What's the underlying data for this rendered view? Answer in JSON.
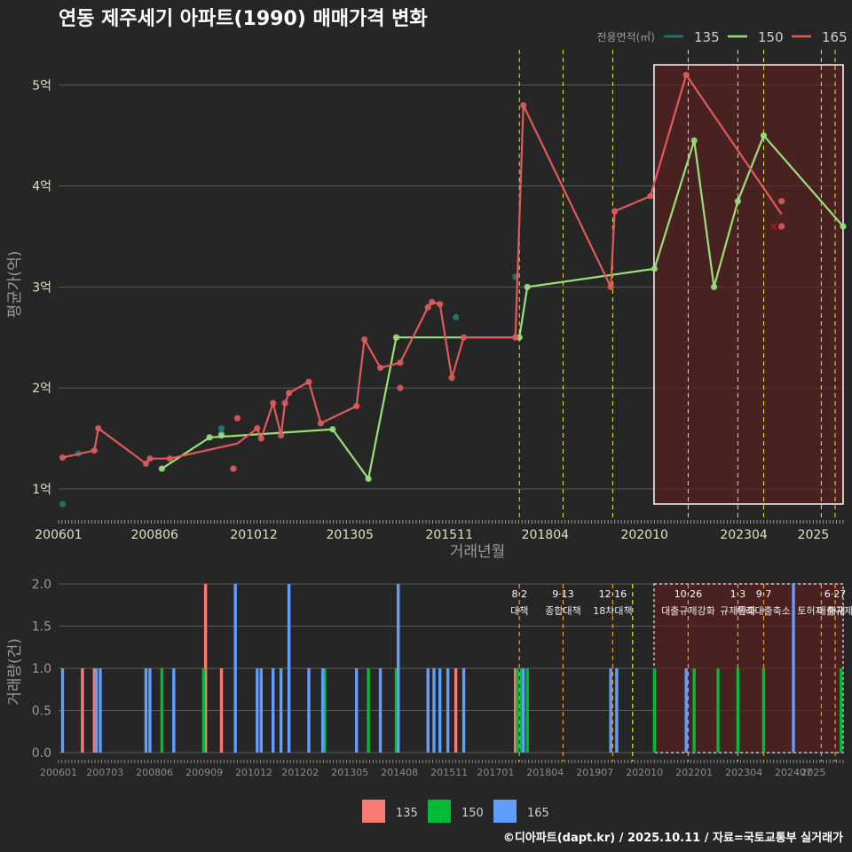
{
  "title": "연동 제주세기 아파트(1990) 매매가격 변화",
  "footer": "©디아파트(dapt.kr) / 2025.10.11 / 자료=국토교통부 실거래가",
  "colors": {
    "bg": "#262626",
    "grid": "#5a5a5a",
    "text": "#ffffff",
    "axis_text": "#e0e0c0",
    "s135_line": "#1e7b6f",
    "s150_line": "#98e07a",
    "s165_line": "#e05a5a",
    "s135_bar": "#f87a72",
    "s150_bar": "#00ba38",
    "s165_bar": "#619cff",
    "vline": "#e8e830",
    "vline_bar": "#f0a020",
    "box_fill": "#5a1f1f",
    "box_stroke": "#ffffff",
    "sale_mark": "#cc2020"
  },
  "chart_data": [
    {
      "type": "line",
      "title": "연동 제주세기 아파트(1990) 매매가격 변화",
      "xlabel": "거래년월",
      "ylabel": "평균가(억)",
      "xlim": [
        2006.0,
        2025.75
      ],
      "ylim": [
        0.7,
        5.35
      ],
      "x_ticks": [
        {
          "t": 2006.0,
          "label": "200601"
        },
        {
          "t": 2008.4167,
          "label": "200806"
        },
        {
          "t": 2010.9167,
          "label": "201012"
        },
        {
          "t": 2013.3333,
          "label": "201305"
        },
        {
          "t": 2015.8333,
          "label": "201511"
        },
        {
          "t": 2018.25,
          "label": "201804"
        },
        {
          "t": 2020.75,
          "label": "202010"
        },
        {
          "t": 2023.25,
          "label": "202304"
        },
        {
          "t": 2025.0,
          "label": "2025"
        }
      ],
      "y_ticks": [
        {
          "v": 1,
          "label": "1억"
        },
        {
          "v": 2,
          "label": "2억"
        },
        {
          "v": 3,
          "label": "3억"
        },
        {
          "v": 4,
          "label": "4억"
        },
        {
          "v": 5,
          "label": "5억"
        }
      ],
      "legend": {
        "title": "전용면적(㎡)",
        "items": [
          "135",
          "150",
          "165"
        ],
        "position": "top-right"
      },
      "event_lines": [
        2017.6,
        2018.7,
        2019.95,
        2021.85,
        2023.1,
        2023.75,
        2025.2,
        2025.55
      ],
      "highlight_range": {
        "x": [
          2020.9,
          2025.75
        ],
        "y": [
          0.85,
          5.2
        ]
      },
      "series": [
        {
          "name": "135",
          "points": [
            [
              2006.1,
              0.85
            ],
            [
              2006.5,
              1.35
            ],
            [
              2010.1,
              1.6
            ],
            [
              2010.1,
              1.55
            ],
            [
              2010.4,
              1.2
            ],
            [
              2017.5,
              3.1
            ],
            [
              2016.0,
              2.7
            ]
          ],
          "line": []
        },
        {
          "name": "150",
          "points": [
            [
              2008.6,
              1.2
            ],
            [
              2009.8,
              1.51
            ],
            [
              2010.1,
              1.53
            ],
            [
              2012.9,
              1.59
            ],
            [
              2013.8,
              1.1
            ],
            [
              2014.5,
              2.5
            ],
            [
              2017.6,
              2.5
            ],
            [
              2017.8,
              3.0
            ],
            [
              2021.0,
              3.18
            ],
            [
              2022.0,
              4.45
            ],
            [
              2022.5,
              3.0
            ],
            [
              2023.1,
              3.85
            ],
            [
              2023.75,
              4.5
            ],
            [
              2025.75,
              3.6
            ]
          ],
          "line": [
            [
              2008.6,
              1.2
            ],
            [
              2009.8,
              1.51
            ],
            [
              2012.9,
              1.59
            ],
            [
              2013.8,
              1.1
            ],
            [
              2014.5,
              2.5
            ],
            [
              2017.6,
              2.5
            ],
            [
              2017.8,
              3.0
            ],
            [
              2021.0,
              3.18
            ],
            [
              2022.0,
              4.45
            ],
            [
              2022.5,
              3.0
            ],
            [
              2023.1,
              3.85
            ],
            [
              2023.75,
              4.5
            ],
            [
              2025.75,
              3.6
            ]
          ]
        },
        {
          "name": "165",
          "points": [
            [
              2006.1,
              1.31
            ],
            [
              2006.9,
              1.38
            ],
            [
              2007.0,
              1.6
            ],
            [
              2008.2,
              1.25
            ],
            [
              2008.3,
              1.3
            ],
            [
              2008.8,
              1.3
            ],
            [
              2010.4,
              1.2
            ],
            [
              2010.5,
              1.7
            ],
            [
              2011.0,
              1.6
            ],
            [
              2011.1,
              1.5
            ],
            [
              2011.4,
              1.85
            ],
            [
              2011.6,
              1.53
            ],
            [
              2011.7,
              1.85
            ],
            [
              2011.8,
              1.95
            ],
            [
              2012.3,
              2.06
            ],
            [
              2012.6,
              1.65
            ],
            [
              2013.5,
              1.82
            ],
            [
              2013.7,
              2.48
            ],
            [
              2014.1,
              2.2
            ],
            [
              2014.6,
              2.25
            ],
            [
              2014.6,
              2.0
            ],
            [
              2015.3,
              2.8
            ],
            [
              2015.4,
              2.85
            ],
            [
              2015.6,
              2.83
            ],
            [
              2015.9,
              2.1
            ],
            [
              2016.2,
              2.5
            ],
            [
              2017.5,
              2.5
            ],
            [
              2017.7,
              4.8
            ],
            [
              2019.9,
              3.0
            ],
            [
              2020.0,
              3.75
            ],
            [
              2020.9,
              3.9
            ],
            [
              2021.8,
              5.1
            ],
            [
              2024.2,
              3.85
            ],
            [
              2024.2,
              3.6
            ]
          ],
          "line": [
            [
              2006.1,
              1.31
            ],
            [
              2006.9,
              1.38
            ],
            [
              2007.0,
              1.6
            ],
            [
              2008.2,
              1.25
            ],
            [
              2008.3,
              1.3
            ],
            [
              2008.8,
              1.3
            ],
            [
              2010.5,
              1.45
            ],
            [
              2011.0,
              1.6
            ],
            [
              2011.1,
              1.5
            ],
            [
              2011.4,
              1.85
            ],
            [
              2011.6,
              1.53
            ],
            [
              2011.7,
              1.85
            ],
            [
              2011.8,
              1.95
            ],
            [
              2012.3,
              2.06
            ],
            [
              2012.6,
              1.65
            ],
            [
              2013.5,
              1.82
            ],
            [
              2013.7,
              2.48
            ],
            [
              2014.1,
              2.2
            ],
            [
              2014.6,
              2.25
            ],
            [
              2015.3,
              2.8
            ],
            [
              2015.4,
              2.85
            ],
            [
              2015.6,
              2.83
            ],
            [
              2015.9,
              2.1
            ],
            [
              2016.2,
              2.5
            ],
            [
              2017.5,
              2.5
            ],
            [
              2017.7,
              4.8
            ],
            [
              2019.9,
              3.0
            ],
            [
              2020.0,
              3.75
            ],
            [
              2020.9,
              3.9
            ],
            [
              2021.8,
              5.1
            ],
            [
              2024.2,
              3.72
            ]
          ]
        }
      ],
      "sale_cancel_marks": [
        [
          2024.0,
          3.6
        ]
      ]
    },
    {
      "type": "bar",
      "ylabel": "거래량(건)",
      "xlim": [
        2006.0,
        2025.75
      ],
      "ylim": [
        0,
        2.0
      ],
      "y_ticks": [
        {
          "v": 0,
          "label": "0.0"
        },
        {
          "v": 0.5,
          "label": "0.5"
        },
        {
          "v": 1,
          "label": "1.0"
        },
        {
          "v": 1.5,
          "label": "1.5"
        },
        {
          "v": 2,
          "label": "2.0"
        }
      ],
      "x_ticks": [
        {
          "t": 2006.0,
          "label": "200601"
        },
        {
          "t": 2007.1667,
          "label": "200703"
        },
        {
          "t": 2008.4167,
          "label": "200806"
        },
        {
          "t": 2009.6667,
          "label": "200909"
        },
        {
          "t": 2010.9167,
          "label": "201012"
        },
        {
          "t": 2012.0833,
          "label": "201202"
        },
        {
          "t": 2013.3333,
          "label": "201305"
        },
        {
          "t": 2014.5833,
          "label": "201408"
        },
        {
          "t": 2015.8333,
          "label": "201511"
        },
        {
          "t": 2017.0,
          "label": "201701"
        },
        {
          "t": 2018.25,
          "label": "201804"
        },
        {
          "t": 2019.5,
          "label": "201907"
        },
        {
          "t": 2020.75,
          "label": "202010"
        },
        {
          "t": 2022.0,
          "label": "202201"
        },
        {
          "t": 2023.25,
          "label": "202304"
        },
        {
          "t": 2024.5,
          "label": "202407"
        },
        {
          "t": 2025.0,
          "label": "2025"
        }
      ],
      "event_lines": [
        2017.6,
        2018.7,
        2019.95,
        2020.45,
        2021.85,
        2023.1,
        2023.75,
        2025.2,
        2025.55
      ],
      "highlight_range": {
        "x": [
          2020.9,
          2025.75
        ]
      },
      "annotations": [
        {
          "date": "8·2",
          "label": "대책",
          "t": 2017.6
        },
        {
          "date": "9·13",
          "label": "종합대책",
          "t": 2018.7
        },
        {
          "date": "12·16",
          "label": "18차대책",
          "t": 2019.95
        },
        {
          "date": "10·26",
          "label": "대출규제강화",
          "t": 2021.85
        },
        {
          "date": "1·3",
          "label": "규제완화",
          "t": 2023.1
        },
        {
          "date": "9·7",
          "label": "특례대출축소",
          "t": 2023.75
        },
        {
          "date": "",
          "label": "토허제 해제",
          "t": 2025.2
        },
        {
          "date": "6·27",
          "label": "대출규제",
          "t": 2025.55
        }
      ],
      "bars": {
        "135": [
          [
            2006.6,
            1
          ],
          [
            2006.9,
            1
          ],
          [
            2009.7,
            2
          ],
          [
            2010.1,
            1
          ],
          [
            2016.0,
            1
          ],
          [
            2017.5,
            1
          ]
        ],
        "150": [
          [
            2008.6,
            1
          ],
          [
            2009.65,
            1
          ],
          [
            2012.7,
            1
          ],
          [
            2013.8,
            1
          ],
          [
            2014.5,
            1
          ],
          [
            2017.55,
            1
          ],
          [
            2017.65,
            1
          ],
          [
            2017.8,
            1
          ],
          [
            2021.0,
            1
          ],
          [
            2022.0,
            1
          ],
          [
            2022.6,
            1
          ],
          [
            2023.1,
            1
          ],
          [
            2023.75,
            1
          ],
          [
            2025.7,
            1
          ]
        ],
        "165": [
          [
            2006.1,
            1
          ],
          [
            2006.95,
            1
          ],
          [
            2007.05,
            1
          ],
          [
            2008.2,
            1
          ],
          [
            2008.3,
            1
          ],
          [
            2008.9,
            1
          ],
          [
            2010.45,
            2
          ],
          [
            2011.0,
            1
          ],
          [
            2011.1,
            1
          ],
          [
            2011.4,
            1
          ],
          [
            2011.6,
            1
          ],
          [
            2011.8,
            2
          ],
          [
            2012.3,
            1
          ],
          [
            2012.65,
            1
          ],
          [
            2013.5,
            1
          ],
          [
            2014.1,
            1
          ],
          [
            2014.55,
            2
          ],
          [
            2015.3,
            1
          ],
          [
            2015.45,
            1
          ],
          [
            2015.6,
            1
          ],
          [
            2015.8,
            1
          ],
          [
            2016.2,
            1
          ],
          [
            2017.7,
            1
          ],
          [
            2019.9,
            1
          ],
          [
            2020.05,
            1
          ],
          [
            2021.8,
            1
          ],
          [
            2024.5,
            2
          ]
        ]
      },
      "legend": {
        "items": [
          "135",
          "150",
          "165"
        ],
        "position": "bottom"
      }
    }
  ]
}
